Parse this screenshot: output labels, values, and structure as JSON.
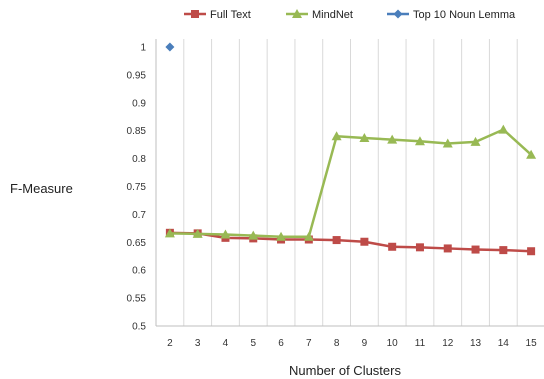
{
  "chart_data": {
    "type": "line",
    "title": "",
    "xlabel": "Number of Clusters",
    "ylabel": "F-Measure",
    "categories": [
      "2",
      "3",
      "4",
      "5",
      "6",
      "7",
      "8",
      "9",
      "10",
      "11",
      "12",
      "13",
      "14",
      "15"
    ],
    "ylim": [
      0.5,
      1
    ],
    "yticks": [
      "0.5",
      "0.55",
      "0.6",
      "0.65",
      "0.7",
      "0.75",
      "0.8",
      "0.85",
      "0.9",
      "0.95",
      "1"
    ],
    "grid": "vertical",
    "legend_position": "top",
    "series": [
      {
        "name": "Full Text",
        "color": "#be4b48",
        "marker": "square",
        "values": [
          0.667,
          0.666,
          0.658,
          0.657,
          0.655,
          0.655,
          0.654,
          0.651,
          0.642,
          0.641,
          0.639,
          0.637,
          0.636,
          0.634
        ]
      },
      {
        "name": "MindNet",
        "color": "#98b954",
        "marker": "triangle",
        "values": [
          0.666,
          0.665,
          0.664,
          0.662,
          0.66,
          0.66,
          0.84,
          0.837,
          0.834,
          0.831,
          0.827,
          0.83,
          0.852,
          0.807
        ]
      },
      {
        "name": "Top 10 Noun Lemma",
        "color": "#4a7ebb",
        "marker": "diamond",
        "values": [
          1.0,
          null,
          null,
          null,
          null,
          null,
          null,
          null,
          null,
          null,
          null,
          null,
          null,
          null
        ]
      }
    ]
  }
}
